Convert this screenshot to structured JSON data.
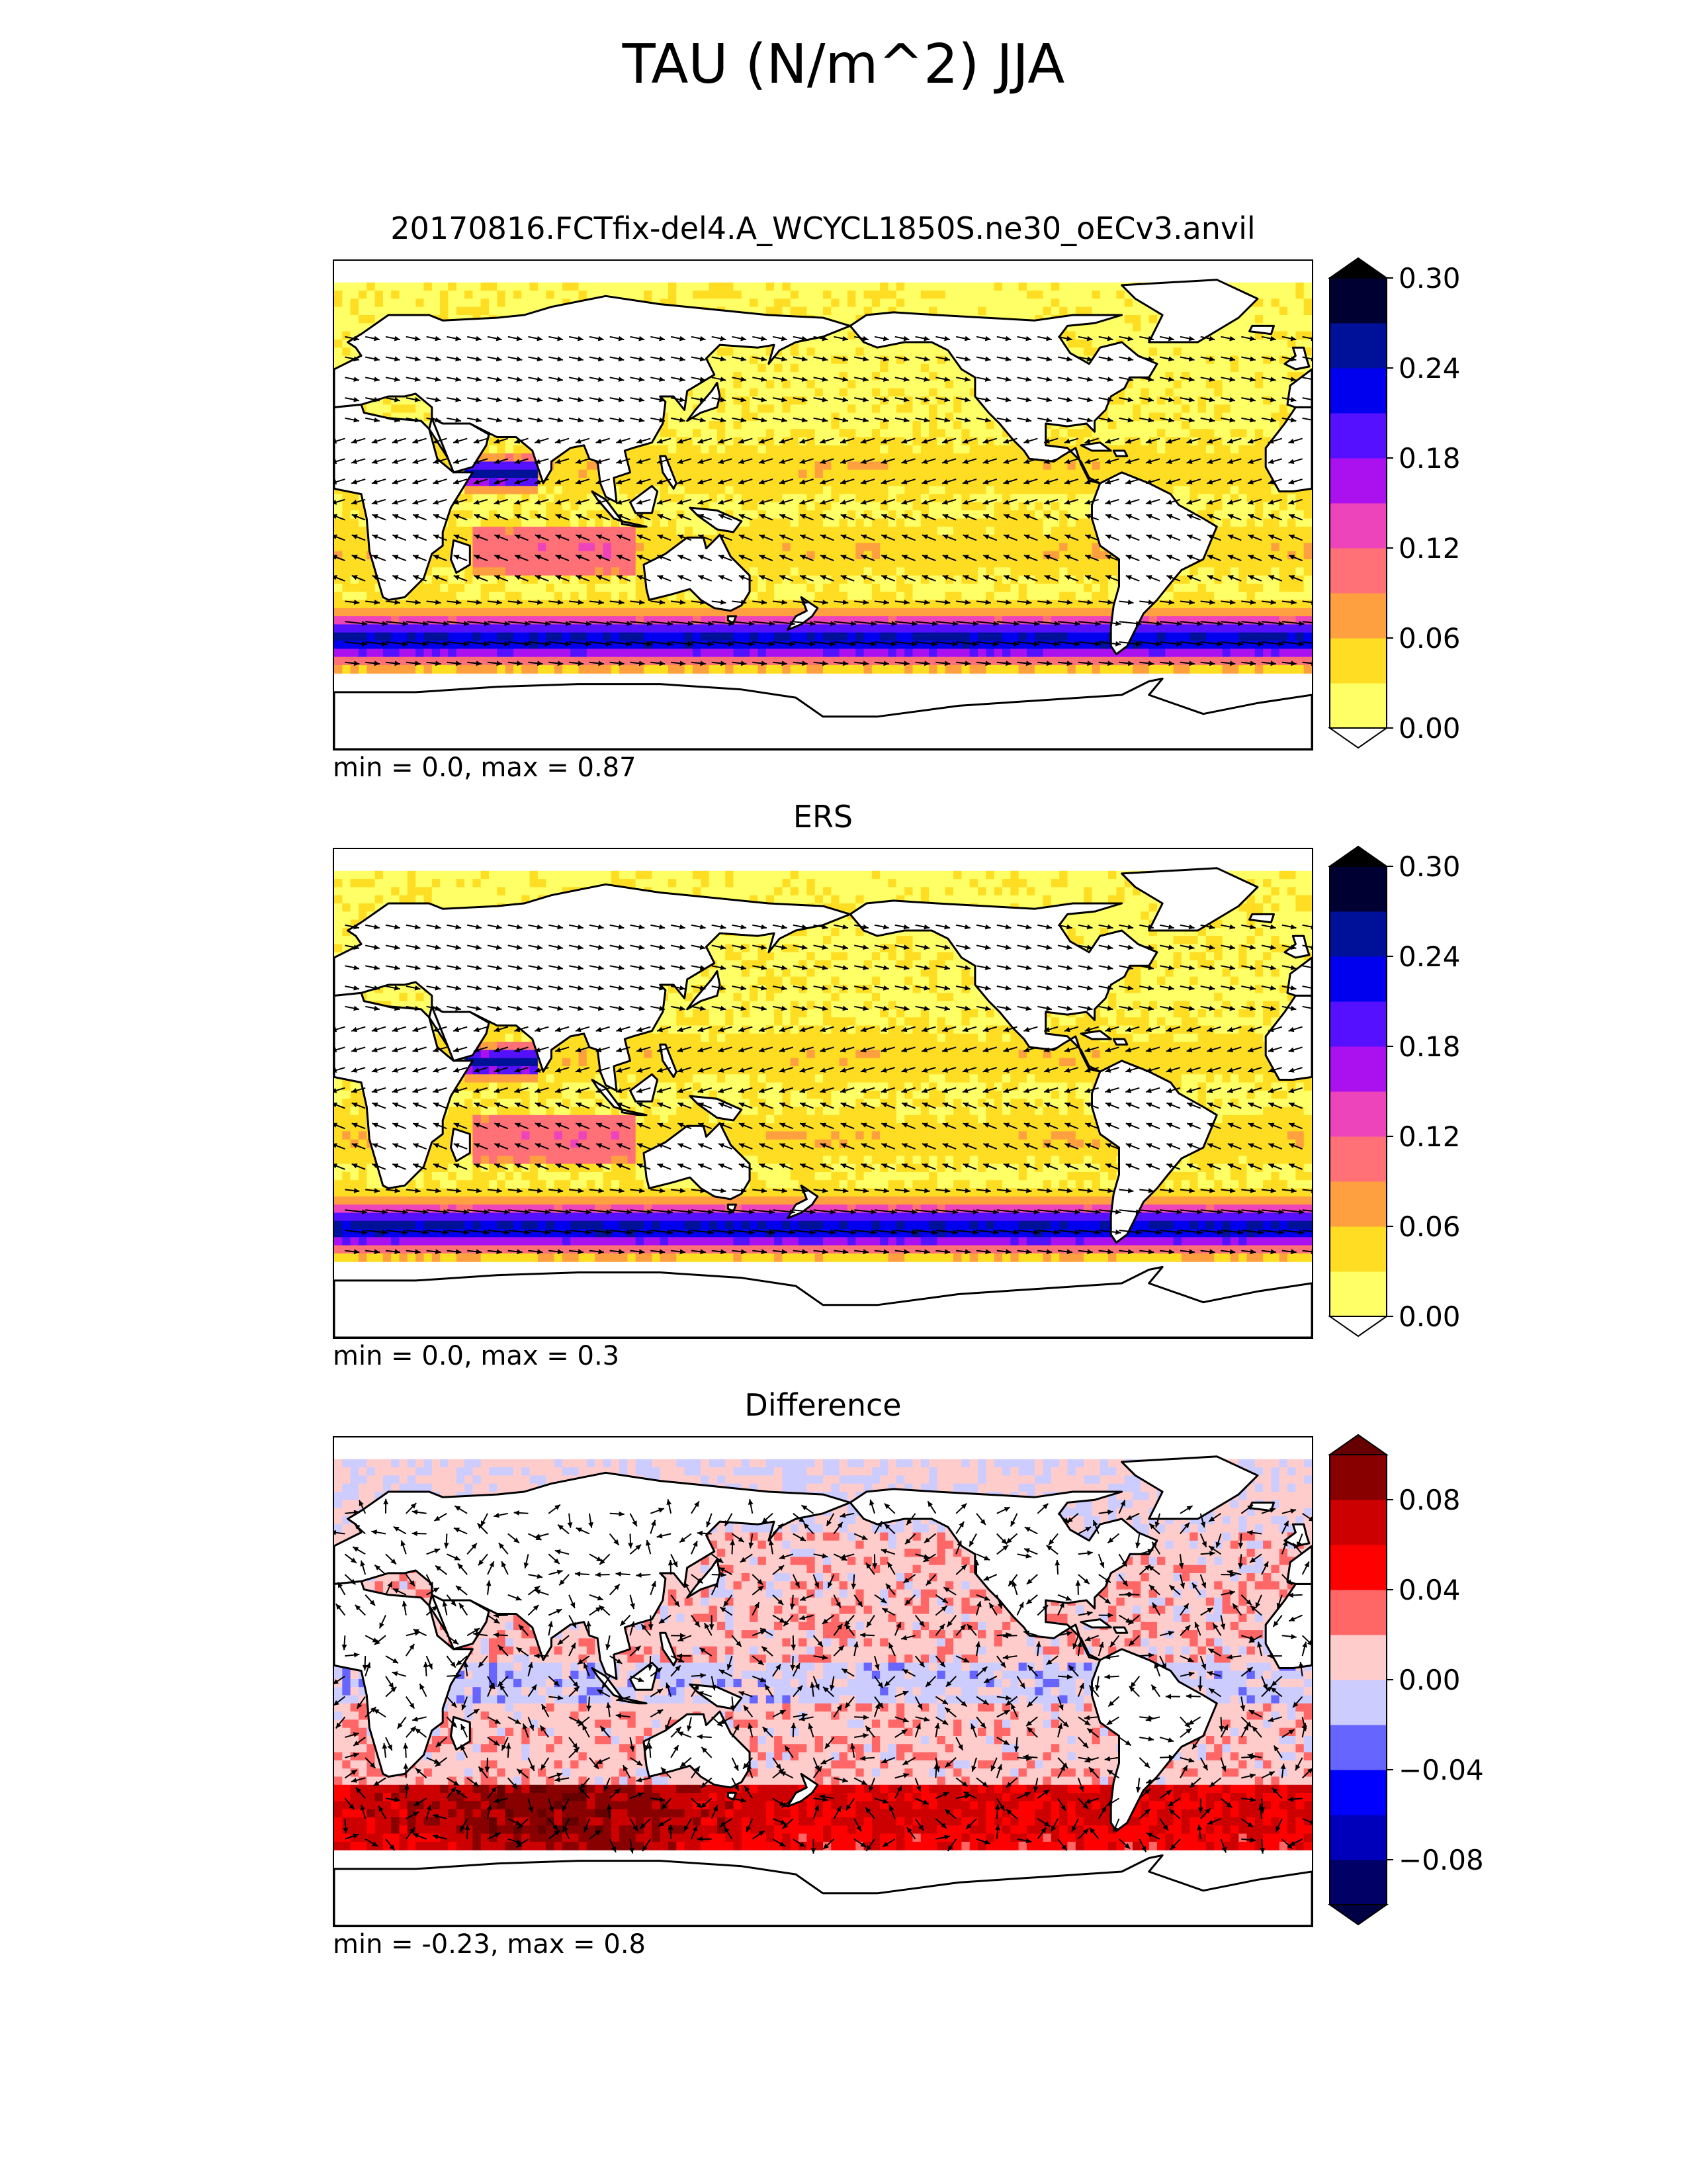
{
  "figure": {
    "title": "TAU (N/m^2) JJA"
  },
  "chart_data": [
    {
      "type": "heatmap",
      "title": "20170816.FCTfix-del4.A_WCYCL1850S.ne30_oECv3.anvil",
      "stats": "min = 0.0, max = 0.87",
      "colorbar": {
        "ticks": [
          "0.00",
          "0.06",
          "0.12",
          "0.18",
          "0.24",
          "0.30"
        ],
        "levels": [
          0.0,
          0.03,
          0.06,
          0.09,
          0.12,
          0.15,
          0.18,
          0.21,
          0.24,
          0.27,
          0.3
        ],
        "colors": [
          "#ffff66",
          "#ffdd22",
          "#ffa040",
          "#ff7077",
          "#ee44bb",
          "#aa11ee",
          "#5511ff",
          "#0000ee",
          "#001199",
          "#000033"
        ],
        "extend": "both",
        "under_color": "#ffffff",
        "over_color": "#000000"
      },
      "vectors": "wind stress arrows (quiver)"
    },
    {
      "type": "heatmap",
      "title": "ERS",
      "stats": "min = 0.0, max = 0.3",
      "colorbar": {
        "ticks": [
          "0.00",
          "0.06",
          "0.12",
          "0.18",
          "0.24",
          "0.30"
        ],
        "levels": [
          0.0,
          0.03,
          0.06,
          0.09,
          0.12,
          0.15,
          0.18,
          0.21,
          0.24,
          0.27,
          0.3
        ],
        "colors": [
          "#ffff66",
          "#ffdd22",
          "#ffa040",
          "#ff7077",
          "#ee44bb",
          "#aa11ee",
          "#5511ff",
          "#0000ee",
          "#001199",
          "#000033"
        ],
        "extend": "both",
        "under_color": "#ffffff",
        "over_color": "#000000"
      },
      "vectors": "wind stress arrows (quiver)"
    },
    {
      "type": "heatmap",
      "title": "Difference",
      "stats": "min = -0.23, max = 0.8",
      "colorbar": {
        "ticks": [
          "−0.08",
          "−0.04",
          "0.00",
          "0.04",
          "0.08"
        ],
        "tick_values": [
          -0.08,
          -0.04,
          0.0,
          0.04,
          0.08
        ],
        "levels": [
          -0.1,
          -0.08,
          -0.06,
          -0.04,
          -0.02,
          0.0,
          0.02,
          0.04,
          0.06,
          0.08,
          0.1
        ],
        "colors": [
          "#000066",
          "#0000bb",
          "#0000ff",
          "#6666ff",
          "#ccccff",
          "#ffcccc",
          "#ff6666",
          "#ff0000",
          "#cc0000",
          "#880000"
        ],
        "extend": "both",
        "under_color": "#000044",
        "over_color": "#660000"
      },
      "vectors": "wind stress difference arrows (quiver)"
    }
  ]
}
